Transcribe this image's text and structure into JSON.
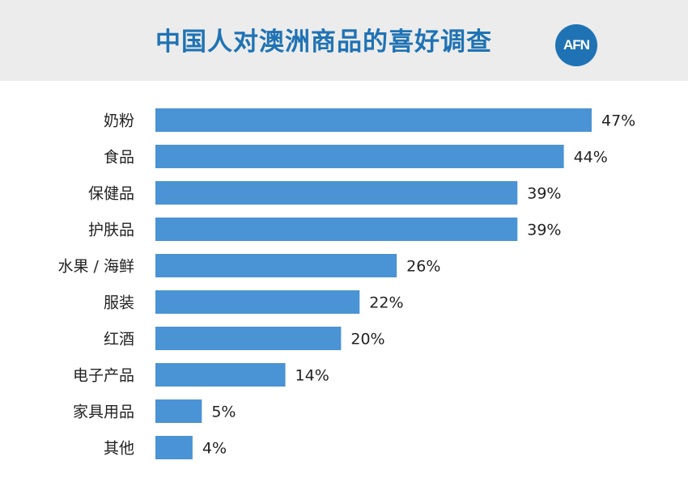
{
  "header": {
    "title": "中国人对澳洲商品的喜好调查",
    "logo_text": "AFN"
  },
  "colors": {
    "bar": "#4a93d4",
    "title": "#1f73b4",
    "header_bg": "#ececec"
  },
  "chart_data": {
    "type": "bar",
    "orientation": "horizontal",
    "title": "中国人对澳洲商品的喜好调查",
    "categories": [
      "奶粉",
      "食品",
      "保健品",
      "护肤品",
      "水果 / 海鲜",
      "服装",
      "红酒",
      "电子产品",
      "家具用品",
      "其他"
    ],
    "values": [
      47,
      44,
      39,
      39,
      26,
      22,
      20,
      14,
      5,
      4
    ],
    "value_labels": [
      "47%",
      "44%",
      "39%",
      "39%",
      "26%",
      "22%",
      "20%",
      "14%",
      "5%",
      "4%"
    ],
    "xlabel": "",
    "ylabel": "",
    "xlim": [
      0,
      47
    ],
    "grid": false,
    "legend": "none"
  }
}
